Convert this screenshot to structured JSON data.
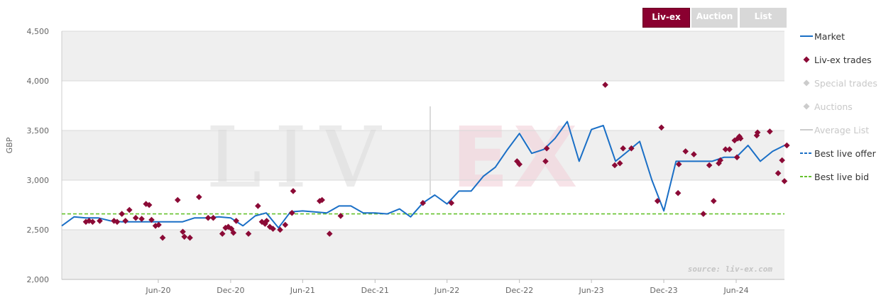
{
  "tabs": [
    {
      "label": "Liv-ex",
      "active": true
    },
    {
      "label": "Auction",
      "active": false
    },
    {
      "label": "List",
      "active": false
    }
  ],
  "legend": [
    {
      "label": "Market",
      "symbol": "line",
      "color": "#1a6fc6",
      "visible": true
    },
    {
      "label": "Liv-ex trades",
      "symbol": "diamond",
      "color": "#8b0a36",
      "visible": true
    },
    {
      "label": "Special trades",
      "symbol": "diamond",
      "color": "#cccccc",
      "visible": false
    },
    {
      "label": "Auctions",
      "symbol": "diamond",
      "color": "#cccccc",
      "visible": false
    },
    {
      "label": "Average List",
      "symbol": "line",
      "color": "#cccccc",
      "visible": false
    },
    {
      "label": "Best live offer",
      "symbol": "dash",
      "color": "#1a6fc6",
      "visible": true
    },
    {
      "label": "Best live bid",
      "symbol": "dash",
      "color": "#66c22e",
      "visible": true
    }
  ],
  "watermark": {
    "text_left": "LIV",
    "text_right": "EX"
  },
  "source_text": "source: liv-ex.com",
  "colors": {
    "market": "#1a6fc6",
    "trades": "#8b0a36",
    "bid": "#66c22e",
    "band": "#efefef",
    "brand": "#8a0030"
  },
  "chart_data": {
    "type": "line",
    "ylabel": "GBP",
    "xlabel": "",
    "ylim": [
      2000,
      4500
    ],
    "yticks": [
      2000,
      2500,
      3000,
      3500,
      4000,
      4500
    ],
    "ytick_labels": [
      "2,000",
      "2,500",
      "3,000",
      "3,500",
      "4,000",
      "4,500"
    ],
    "xlim": [
      "2019-10-01",
      "2024-10-01"
    ],
    "xticks": [
      {
        "date": "2020-06-01",
        "label": "Jun-20"
      },
      {
        "date": "2020-12-01",
        "label": "Dec-20"
      },
      {
        "date": "2021-06-01",
        "label": "Jun-21"
      },
      {
        "date": "2021-12-01",
        "label": "Dec-21"
      },
      {
        "date": "2022-06-01",
        "label": "Jun-22"
      },
      {
        "date": "2022-12-01",
        "label": "Dec-22"
      },
      {
        "date": "2023-06-01",
        "label": "Jun-23"
      },
      {
        "date": "2023-12-01",
        "label": "Dec-23"
      },
      {
        "date": "2024-06-01",
        "label": "Jun-24"
      }
    ],
    "series": [
      {
        "name": "Market",
        "points": [
          [
            "2019-10-01",
            2540
          ],
          [
            "2019-11-01",
            2630
          ],
          [
            "2019-12-01",
            2620
          ],
          [
            "2020-01-01",
            2620
          ],
          [
            "2020-02-01",
            2590
          ],
          [
            "2020-03-01",
            2580
          ],
          [
            "2020-04-01",
            2580
          ],
          [
            "2020-05-01",
            2580
          ],
          [
            "2020-06-01",
            2580
          ],
          [
            "2020-07-01",
            2580
          ],
          [
            "2020-08-01",
            2580
          ],
          [
            "2020-09-01",
            2620
          ],
          [
            "2020-10-01",
            2620
          ],
          [
            "2020-11-01",
            2630
          ],
          [
            "2020-12-01",
            2620
          ],
          [
            "2021-01-01",
            2540
          ],
          [
            "2021-02-01",
            2640
          ],
          [
            "2021-03-01",
            2670
          ],
          [
            "2021-04-01",
            2520
          ],
          [
            "2021-05-01",
            2680
          ],
          [
            "2021-06-01",
            2690
          ],
          [
            "2021-07-01",
            2680
          ],
          [
            "2021-08-01",
            2670
          ],
          [
            "2021-09-01",
            2740
          ],
          [
            "2021-10-01",
            2740
          ],
          [
            "2021-11-01",
            2670
          ],
          [
            "2021-12-01",
            2670
          ],
          [
            "2022-01-01",
            2660
          ],
          [
            "2022-02-01",
            2710
          ],
          [
            "2022-03-01",
            2630
          ],
          [
            "2022-04-01",
            2770
          ],
          [
            "2022-05-01",
            2850
          ],
          [
            "2022-06-01",
            2760
          ],
          [
            "2022-07-01",
            2890
          ],
          [
            "2022-08-01",
            2890
          ],
          [
            "2022-09-01",
            3040
          ],
          [
            "2022-10-01",
            3130
          ],
          [
            "2022-11-01",
            3310
          ],
          [
            "2022-12-01",
            3470
          ],
          [
            "2023-01-01",
            3270
          ],
          [
            "2023-02-01",
            3310
          ],
          [
            "2023-03-01",
            3420
          ],
          [
            "2023-04-01",
            3590
          ],
          [
            "2023-05-01",
            3190
          ],
          [
            "2023-06-01",
            3510
          ],
          [
            "2023-07-01",
            3550
          ],
          [
            "2023-08-01",
            3190
          ],
          [
            "2023-09-01",
            3290
          ],
          [
            "2023-10-01",
            3390
          ],
          [
            "2023-11-01",
            3000
          ],
          [
            "2023-12-01",
            2690
          ],
          [
            "2024-01-01",
            3190
          ],
          [
            "2024-02-01",
            3190
          ],
          [
            "2024-03-01",
            3190
          ],
          [
            "2024-04-01",
            3190
          ],
          [
            "2024-05-01",
            3230
          ],
          [
            "2024-06-01",
            3230
          ],
          [
            "2024-07-01",
            3350
          ],
          [
            "2024-08-01",
            3190
          ],
          [
            "2024-09-01",
            3290
          ],
          [
            "2024-10-01",
            3350
          ]
        ]
      },
      {
        "name": "Liv-ex trades",
        "points": [
          [
            "2019-12-01",
            2580
          ],
          [
            "2019-12-09",
            2590
          ],
          [
            "2019-12-18",
            2580
          ],
          [
            "2020-01-05",
            2590
          ],
          [
            "2020-02-10",
            2590
          ],
          [
            "2020-02-18",
            2580
          ],
          [
            "2020-03-01",
            2660
          ],
          [
            "2020-03-10",
            2590
          ],
          [
            "2020-03-20",
            2700
          ],
          [
            "2020-04-05",
            2620
          ],
          [
            "2020-04-20",
            2610
          ],
          [
            "2020-05-01",
            2760
          ],
          [
            "2020-05-09",
            2750
          ],
          [
            "2020-05-15",
            2600
          ],
          [
            "2020-05-25",
            2540
          ],
          [
            "2020-06-02",
            2550
          ],
          [
            "2020-06-12",
            2420
          ],
          [
            "2020-07-20",
            2800
          ],
          [
            "2020-08-02",
            2480
          ],
          [
            "2020-08-06",
            2430
          ],
          [
            "2020-08-20",
            2420
          ],
          [
            "2020-09-12",
            2830
          ],
          [
            "2020-10-05",
            2620
          ],
          [
            "2020-10-18",
            2620
          ],
          [
            "2020-11-10",
            2460
          ],
          [
            "2020-11-18",
            2520
          ],
          [
            "2020-11-25",
            2530
          ],
          [
            "2020-12-03",
            2510
          ],
          [
            "2020-12-08",
            2470
          ],
          [
            "2020-12-15",
            2590
          ],
          [
            "2021-01-15",
            2460
          ],
          [
            "2021-02-08",
            2740
          ],
          [
            "2021-02-18",
            2580
          ],
          [
            "2021-02-26",
            2560
          ],
          [
            "2021-03-02",
            2590
          ],
          [
            "2021-03-10",
            2530
          ],
          [
            "2021-03-18",
            2510
          ],
          [
            "2021-04-05",
            2500
          ],
          [
            "2021-04-18",
            2550
          ],
          [
            "2021-05-05",
            2670
          ],
          [
            "2021-05-08",
            2890
          ],
          [
            "2021-07-14",
            2790
          ],
          [
            "2021-07-20",
            2800
          ],
          [
            "2021-08-08",
            2460
          ],
          [
            "2021-09-05",
            2640
          ],
          [
            "2022-04-01",
            2770
          ],
          [
            "2022-06-12",
            2770
          ],
          [
            "2022-11-25",
            3190
          ],
          [
            "2022-12-01",
            3160
          ],
          [
            "2023-02-05",
            3190
          ],
          [
            "2023-02-08",
            3320
          ],
          [
            "2023-07-06",
            3960
          ],
          [
            "2023-07-30",
            3150
          ],
          [
            "2023-08-12",
            3170
          ],
          [
            "2023-08-20",
            3320
          ],
          [
            "2023-09-10",
            3320
          ],
          [
            "2023-11-15",
            2790
          ],
          [
            "2023-11-25",
            3530
          ],
          [
            "2024-01-06",
            2870
          ],
          [
            "2024-01-08",
            3160
          ],
          [
            "2024-01-25",
            3290
          ],
          [
            "2024-02-15",
            3260
          ],
          [
            "2024-03-10",
            2660
          ],
          [
            "2024-03-25",
            3150
          ],
          [
            "2024-04-05",
            2790
          ],
          [
            "2024-04-18",
            3170
          ],
          [
            "2024-04-22",
            3200
          ],
          [
            "2024-05-05",
            3310
          ],
          [
            "2024-05-15",
            3310
          ],
          [
            "2024-05-28",
            3400
          ],
          [
            "2024-06-05",
            3420
          ],
          [
            "2024-06-09",
            3440
          ],
          [
            "2024-06-12",
            3420
          ],
          [
            "2024-06-03",
            3230
          ],
          [
            "2024-07-23",
            3450
          ],
          [
            "2024-07-25",
            3480
          ],
          [
            "2024-08-25",
            3490
          ],
          [
            "2024-09-15",
            3070
          ],
          [
            "2024-09-25",
            3200
          ],
          [
            "2024-10-01",
            2990
          ],
          [
            "2024-10-07",
            3350
          ]
        ]
      },
      {
        "name": "Best live bid",
        "value": 2660
      }
    ]
  }
}
